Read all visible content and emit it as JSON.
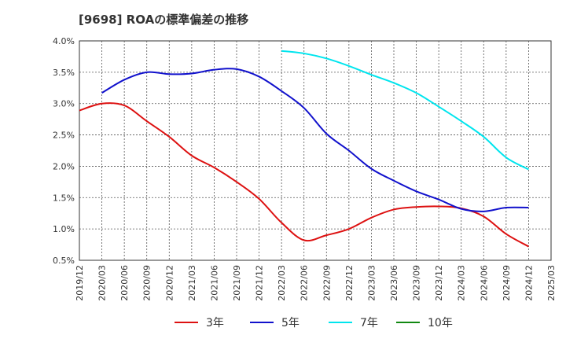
{
  "chart_data": {
    "type": "line",
    "title": "[9698] ROAの標準偏差の推移",
    "x_labels": [
      "2019/12",
      "2020/03",
      "2020/06",
      "2020/09",
      "2020/12",
      "2021/03",
      "2021/06",
      "2021/09",
      "2021/12",
      "2022/03",
      "2022/06",
      "2022/09",
      "2022/12",
      "2023/03",
      "2023/06",
      "2023/09",
      "2023/12",
      "2024/03",
      "2024/06",
      "2024/09",
      "2024/12",
      "2025/03"
    ],
    "y_ticks": [
      "0.5%",
      "1.0%",
      "1.5%",
      "2.0%",
      "2.5%",
      "3.0%",
      "3.5%",
      "4.0%"
    ],
    "ylim": [
      0.5,
      4.0
    ],
    "grid": true,
    "legend_position": "bottom",
    "series": [
      {
        "name": "3年",
        "color": "#dd1111",
        "values": [
          2.89,
          3.0,
          2.97,
          2.72,
          2.47,
          2.17,
          1.98,
          1.75,
          1.48,
          1.1,
          0.82,
          0.9,
          1.0,
          1.18,
          1.31,
          1.35,
          1.36,
          1.33,
          1.2,
          0.92,
          0.72,
          null
        ]
      },
      {
        "name": "5年",
        "color": "#1111cc",
        "values": [
          null,
          3.17,
          3.38,
          3.5,
          3.47,
          3.48,
          3.54,
          3.55,
          3.43,
          3.2,
          2.93,
          2.52,
          2.25,
          1.96,
          1.77,
          1.6,
          1.47,
          1.32,
          1.28,
          1.34,
          1.34,
          null
        ]
      },
      {
        "name": "7年",
        "color": "#00e5ee",
        "values": [
          null,
          null,
          null,
          null,
          null,
          null,
          null,
          null,
          null,
          3.84,
          3.8,
          3.72,
          3.6,
          3.46,
          3.33,
          3.17,
          2.95,
          2.72,
          2.47,
          2.14,
          1.95,
          null
        ]
      },
      {
        "name": "10年",
        "color": "#118811",
        "values": [
          null,
          null,
          null,
          null,
          null,
          null,
          null,
          null,
          null,
          null,
          null,
          null,
          null,
          null,
          null,
          null,
          null,
          null,
          null,
          null,
          null,
          null
        ]
      }
    ]
  }
}
